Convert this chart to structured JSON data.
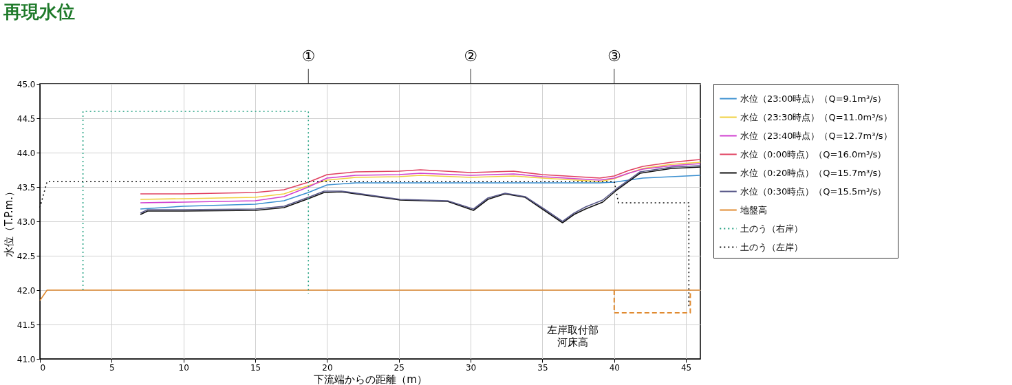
{
  "chart_data": {
    "type": "line",
    "title": "再現水位",
    "xlabel": "下流端からの距離（m）",
    "ylabel": "水位（T.P.m.）",
    "xlim": [
      0,
      46
    ],
    "xticks": [
      0,
      5,
      10,
      15,
      20,
      25,
      30,
      35,
      40,
      45
    ],
    "ylim": [
      41,
      45
    ],
    "yticks": [
      {
        "value": 41,
        "label": "41.0"
      },
      {
        "value": 41.5,
        "label": "41.5"
      },
      {
        "value": 42,
        "label": "42.0"
      },
      {
        "value": 42.5,
        "label": "42.5"
      },
      {
        "value": 43,
        "label": "43.0"
      },
      {
        "value": 43.5,
        "label": "43.5"
      },
      {
        "value": 44,
        "label": "44.0"
      },
      {
        "value": 44.5,
        "label": "44.5"
      },
      {
        "value": 45,
        "label": "45.0"
      }
    ],
    "grid": true,
    "legend": "right",
    "line_style": "solid",
    "series": [
      {
        "name": "水位（23:00時点）（Q=9.1m³/s）",
        "color": "#3a8fd0",
        "x": [
          7,
          10,
          15,
          17,
          18.7,
          20,
          22,
          25,
          30,
          35,
          39,
          40,
          41,
          42,
          44,
          46
        ],
        "values": [
          43.18,
          43.22,
          43.25,
          43.3,
          43.42,
          43.53,
          43.56,
          43.56,
          43.56,
          43.56,
          43.56,
          43.57,
          43.6,
          43.63,
          43.65,
          43.67
        ]
      },
      {
        "name": "水位（23:30時点）（Q=11.0m³/s）",
        "color": "#f0d040",
        "x": [
          7,
          10,
          15,
          17,
          18.7,
          20,
          22,
          25,
          26.5,
          30,
          33,
          35,
          39,
          40,
          41,
          42,
          44,
          46
        ],
        "values": [
          43.32,
          43.33,
          43.35,
          43.4,
          43.52,
          43.6,
          43.64,
          43.65,
          43.67,
          43.64,
          43.66,
          43.63,
          43.58,
          43.62,
          43.7,
          43.77,
          43.83,
          43.86
        ]
      },
      {
        "name": "水位（23:40時点）（Q=12.7m³/s）",
        "color": "#d040d0",
        "x": [
          7,
          10,
          15,
          17,
          18.7,
          20,
          22,
          25,
          26.5,
          30,
          33,
          35,
          39,
          40,
          41,
          42,
          44,
          46
        ],
        "values": [
          43.27,
          43.28,
          43.3,
          43.36,
          43.5,
          43.63,
          43.67,
          43.68,
          43.7,
          43.67,
          43.69,
          43.65,
          43.6,
          43.63,
          43.7,
          43.76,
          43.81,
          43.84
        ]
      },
      {
        "name": "水位（0:00時点）（Q=16.0m³/s）",
        "color": "#e04060",
        "x": [
          7,
          10,
          15,
          17,
          18.7,
          20,
          22,
          25,
          26.5,
          30,
          33,
          35,
          39,
          40,
          41,
          42,
          44,
          46
        ],
        "values": [
          43.4,
          43.4,
          43.42,
          43.46,
          43.57,
          43.68,
          43.72,
          43.73,
          43.75,
          43.71,
          43.73,
          43.68,
          43.63,
          43.66,
          43.74,
          43.8,
          43.86,
          43.9
        ]
      },
      {
        "name": "水位（0:20時点）（Q=15.7m³/s）",
        "color": "#101010",
        "x": [
          7,
          7.5,
          10,
          15,
          17,
          18.7,
          19.8,
          21,
          25.1,
          28.4,
          30.2,
          31.2,
          32.4,
          33.8,
          35.2,
          36.4,
          37.2,
          38,
          39.2,
          40.2,
          41.8,
          44,
          46
        ],
        "values": [
          43.1,
          43.15,
          43.15,
          43.16,
          43.2,
          43.33,
          43.42,
          43.43,
          43.31,
          43.29,
          43.16,
          43.32,
          43.4,
          43.35,
          43.15,
          42.98,
          43.1,
          43.18,
          43.28,
          43.46,
          43.7,
          43.77,
          43.79
        ]
      },
      {
        "name": "水位（0:30時点）（Q=15.5m³/s）",
        "color": "#5a5a8a",
        "x": [
          7,
          7.5,
          10,
          15,
          17,
          18.7,
          19.8,
          21,
          25.1,
          28.4,
          30.2,
          31.2,
          32.4,
          33.8,
          35.2,
          36.4,
          37.2,
          38,
          39.2,
          40.2,
          41.8,
          44,
          46
        ],
        "values": [
          43.12,
          43.17,
          43.17,
          43.18,
          43.22,
          43.35,
          43.44,
          43.44,
          43.32,
          43.3,
          43.18,
          43.34,
          43.41,
          43.36,
          43.17,
          43.0,
          43.12,
          43.21,
          43.31,
          43.48,
          43.72,
          43.79,
          43.81
        ]
      },
      {
        "name": "地盤高",
        "color": "#e08a30",
        "x": [
          0,
          0.5,
          46
        ],
        "values": [
          41.85,
          42.0,
          42.0
        ]
      },
      {
        "name": "土のう（右岸）",
        "color": "#20a080",
        "line_style": "dotted",
        "x": [
          3,
          3,
          18.7,
          18.7
        ],
        "values": [
          42.0,
          44.6,
          44.6,
          41.95
        ]
      },
      {
        "name": "土のう（左岸）",
        "color": "#101010",
        "line_style": "dotted",
        "x": [
          0,
          0.5,
          40,
          40.3,
          45.2,
          45.2
        ],
        "values": [
          43.2,
          43.58,
          43.58,
          43.27,
          43.27,
          41.75
        ]
      },
      {
        "color": "#e08a30",
        "line_style": "dashed",
        "x": [
          40,
          40,
          45.3,
          45.3
        ],
        "values": [
          42.0,
          41.67,
          41.67,
          42.0
        ]
      }
    ],
    "ref_lines": [
      {
        "axis": "x",
        "value": 18.7,
        "label": "①"
      },
      {
        "axis": "x",
        "value": 30,
        "label": "②"
      },
      {
        "axis": "x",
        "value": 40,
        "label": "③"
      }
    ],
    "annotations": [
      {
        "text": "左岸取付部",
        "x": 40,
        "y": 41.8
      },
      "河床高"
    ]
  }
}
